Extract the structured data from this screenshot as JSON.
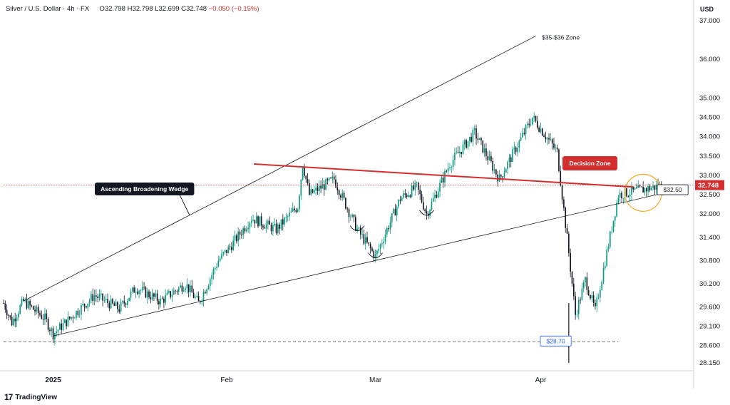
{
  "header": {
    "symbol": "Silver / U.S. Dollar · 4h · FX",
    "o_label": "O",
    "o_value": "32.798",
    "h_label": "H",
    "h_value": "32.798",
    "l_label": "L",
    "l_value": "32.699",
    "c_label": "C",
    "c_value": "32.748",
    "change": "−0.050 (−0.15%)"
  },
  "axis": {
    "unit": "USD"
  },
  "brand": {
    "name": "TradingView"
  },
  "colors": {
    "up": "#089981",
    "down": "#131722",
    "price_tag": "#d32f2f",
    "support_tag": "#2962ff",
    "circle": "#f5a623"
  },
  "chart_data": {
    "type": "candlestick",
    "title": "Silver / U.S. Dollar · 4h · FX",
    "ylim": [
      27.95,
      37.2
    ],
    "y_ticks": [
      "37.000",
      "36.000",
      "35.000",
      "34.500",
      "34.000",
      "33.500",
      "33.000",
      "32.500",
      "32.000",
      "31.400",
      "30.800",
      "30.200",
      "29.600",
      "29.100",
      "28.600",
      "28.150"
    ],
    "x_ticks": [
      "2025",
      "Feb",
      "Mar",
      "Apr"
    ],
    "x_tick_index": [
      30,
      135,
      225,
      325
    ],
    "bar_count": 400,
    "current_price": {
      "label": "32.748",
      "value": 32.748
    },
    "path_points": [
      [
        0,
        29.7
      ],
      [
        5,
        29.2
      ],
      [
        12,
        29.75
      ],
      [
        25,
        29.3
      ],
      [
        30,
        28.9
      ],
      [
        45,
        29.5
      ],
      [
        55,
        29.9
      ],
      [
        70,
        29.55
      ],
      [
        80,
        30.1
      ],
      [
        95,
        29.75
      ],
      [
        110,
        30.2
      ],
      [
        118,
        29.7
      ],
      [
        130,
        30.8
      ],
      [
        138,
        31.2
      ],
      [
        150,
        31.9
      ],
      [
        165,
        31.6
      ],
      [
        178,
        32.2
      ],
      [
        181,
        33.3
      ],
      [
        185,
        32.5
      ],
      [
        200,
        32.9
      ],
      [
        214,
        31.6
      ],
      [
        225,
        30.9
      ],
      [
        240,
        32.4
      ],
      [
        250,
        32.7
      ],
      [
        256,
        32.0
      ],
      [
        270,
        33.3
      ],
      [
        285,
        34.1
      ],
      [
        300,
        32.9
      ],
      [
        310,
        33.7
      ],
      [
        320,
        34.5
      ],
      [
        335,
        33.6
      ],
      [
        342,
        31.0
      ],
      [
        346,
        29.4
      ],
      [
        352,
        30.3
      ],
      [
        358,
        29.5
      ],
      [
        372,
        32.5
      ],
      [
        400,
        32.75
      ]
    ],
    "annotations": {
      "wedge_label": "Ascending Broadening Wedge",
      "upper_target": "$35-$36 Zone",
      "decision_zone": "Decision Zone",
      "support_label": "$28.70",
      "support_value": 28.7,
      "level_label": "$32.50",
      "level_value": 32.5
    }
  }
}
